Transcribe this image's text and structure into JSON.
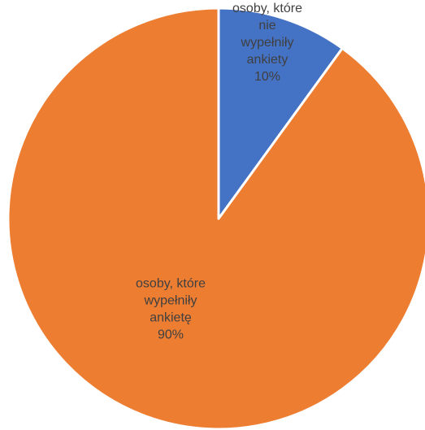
{
  "chart_data": {
    "type": "pie",
    "title": "",
    "slices": [
      {
        "label_lines": [
          "osoby, które",
          "nie",
          "wypełniły",
          "ankiety",
          "10%"
        ],
        "value": 10,
        "color": "#4472C4"
      },
      {
        "label_lines": [
          "osoby, które",
          "wypełniły",
          "ankietę",
          "90%"
        ],
        "value": 90,
        "color": "#ED7D31"
      }
    ],
    "start_angle_deg": 0,
    "direction": "clockwise",
    "slice_border_color": "#ffffff",
    "legend": "none"
  }
}
